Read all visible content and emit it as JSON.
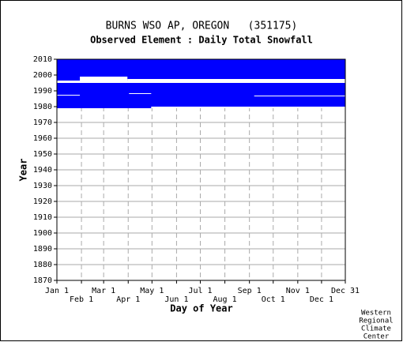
{
  "chart_data": {
    "type": "availability",
    "title": "BURNS WSO AP, OREGON   (351175)",
    "subtitle": "Observed Element : Daily Total Snowfall",
    "y_label": "Year",
    "x_label": "Day of Year",
    "footer": [
      "Western",
      "Regional",
      "Climate",
      "Center"
    ],
    "color": "#0000ff",
    "xlim": [
      1,
      365
    ],
    "ylim": [
      1870,
      2010
    ],
    "yticks": [
      1870,
      1880,
      1890,
      1900,
      1910,
      1920,
      1930,
      1940,
      1950,
      1960,
      1970,
      1980,
      1990,
      2000,
      2010
    ],
    "xticks": [
      {
        "value": 1,
        "label": "Jan 1"
      },
      {
        "value": 32,
        "label": "Feb 1"
      },
      {
        "value": 60,
        "label": "Mar 1"
      },
      {
        "value": 91,
        "label": "Apr 1"
      },
      {
        "value": 121,
        "label": "May 1"
      },
      {
        "value": 152,
        "label": "Jun 1"
      },
      {
        "value": 182,
        "label": "Jul 1"
      },
      {
        "value": 213,
        "label": "Aug 1"
      },
      {
        "value": 244,
        "label": "Sep 1"
      },
      {
        "value": 274,
        "label": "Oct 1"
      },
      {
        "value": 305,
        "label": "Nov 1"
      },
      {
        "value": 335,
        "label": "Dec 1"
      },
      {
        "value": 365,
        "label": "Dec 31"
      }
    ],
    "coverage": {
      "x": [
        1,
        365
      ],
      "y": [
        1979,
        2010
      ]
    },
    "gaps": [
      {
        "x": [
          1,
          365
        ],
        "y": [
          1995,
          1996.5
        ]
      },
      {
        "x": [
          30,
          90
        ],
        "y": [
          1996.5,
          1999
        ]
      },
      {
        "x": [
          90,
          365
        ],
        "y": [
          1996.5,
          1997.5
        ]
      },
      {
        "x": [
          1,
          30
        ],
        "y": [
          1987,
          1987.5
        ]
      },
      {
        "x": [
          92,
          120
        ],
        "y": [
          1988,
          1988.5
        ]
      },
      {
        "x": [
          250,
          365
        ],
        "y": [
          1986.5,
          1987
        ]
      },
      {
        "x": [
          120,
          365
        ],
        "y": [
          1979,
          1980
        ]
      }
    ]
  }
}
